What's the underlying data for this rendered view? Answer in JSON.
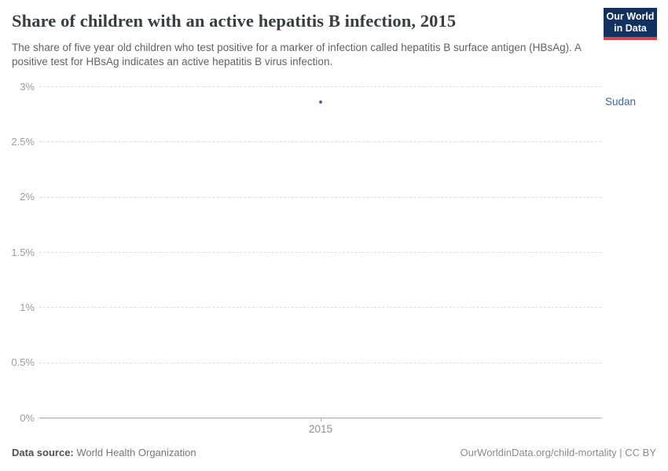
{
  "header": {
    "title": "Share of children with an active hepatitis B infection, 2015",
    "subtitle": "The share of five year old children who test positive for a marker of infection called hepatitis B surface antigen (HBsAg). A positive test for HBsAg indicates an active hepatitis B virus infection.",
    "logo": {
      "line1": "Our World",
      "line2": "in Data",
      "bg_color": "#12315f",
      "bar_color": "#d8404a"
    }
  },
  "chart_data": {
    "type": "scatter",
    "title": "Share of children with an active hepatitis B infection, 2015",
    "x": [
      2015
    ],
    "series": [
      {
        "name": "Sudan",
        "values": [
          2.86
        ],
        "color": "#4c6a9c",
        "label_color": "#3d64ad"
      }
    ],
    "xlabel": "",
    "ylabel": "",
    "ylim": [
      0,
      3
    ],
    "ytick_values": [
      0,
      0.5,
      1,
      1.5,
      2,
      2.5,
      3
    ],
    "yticks": [
      "0%",
      "0.5%",
      "1%",
      "1.5%",
      "2%",
      "2.5%",
      "3%"
    ],
    "xticks": [
      "2015"
    ],
    "grid": "horizontal dashed, solid baseline at 0%",
    "legend": "entity label right of plot",
    "gridline_color": "#dedede",
    "axis_color": "#a5a5a5",
    "tick_label_color": "#9b9b9b"
  },
  "footer": {
    "source_label": "Data source:",
    "source_value": " World Health Organization",
    "attribution": "OurWorldinData.org/child-mortality | CC BY"
  }
}
